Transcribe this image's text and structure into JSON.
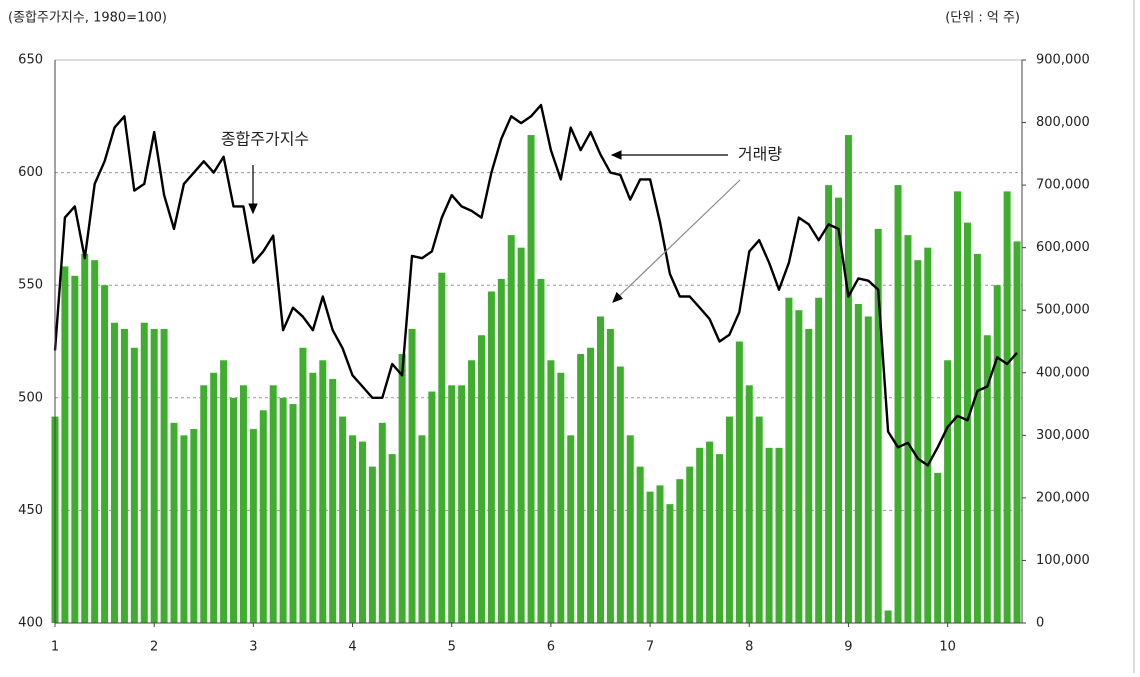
{
  "chart_data": {
    "type": "combo",
    "subtitle_left": "(종합주가지수, 1980=100)",
    "subtitle_right": "(단위 : 억 주)",
    "x": [
      1.0,
      1.1,
      1.2,
      1.3,
      1.4,
      1.5,
      1.6,
      1.7,
      1.8,
      1.9,
      2.0,
      2.1,
      2.2,
      2.3,
      2.4,
      2.5,
      2.6,
      2.7,
      2.8,
      2.9,
      3.0,
      3.1,
      3.2,
      3.3,
      3.4,
      3.5,
      3.6,
      3.7,
      3.8,
      3.9,
      4.0,
      4.1,
      4.2,
      4.3,
      4.4,
      4.5,
      4.6,
      4.7,
      4.8,
      4.9,
      5.0,
      5.1,
      5.2,
      5.3,
      5.4,
      5.5,
      5.6,
      5.7,
      5.8,
      5.9,
      6.0,
      6.1,
      6.2,
      6.3,
      6.4,
      6.5,
      6.6,
      6.7,
      6.8,
      6.9,
      7.0,
      7.1,
      7.2,
      7.3,
      7.4,
      7.5,
      7.6,
      7.7,
      7.8,
      7.9,
      8.0,
      8.1,
      8.2,
      8.3,
      8.4,
      8.5,
      8.6,
      8.7,
      8.8,
      8.9,
      9.0,
      9.1,
      9.2,
      9.3,
      9.4,
      9.5,
      9.6,
      9.7,
      9.8,
      9.9,
      10.0,
      10.1,
      10.2,
      10.3,
      10.4,
      10.5,
      10.6,
      10.7
    ],
    "xlim": [
      1,
      10.75
    ],
    "xticks": [
      1,
      2,
      3,
      4,
      5,
      6,
      7,
      8,
      9,
      10
    ],
    "ylim": [
      400,
      650
    ],
    "yticks": [
      400,
      450,
      500,
      550,
      600,
      650
    ],
    "y2lim": [
      0,
      900000
    ],
    "y2ticks": [
      0,
      {
        "value": 100000,
        "label": "100,000"
      },
      {
        "value": 200000,
        "label": "200,000"
      },
      {
        "value": 300000,
        "label": "300,000"
      },
      {
        "value": 400000,
        "label": "400,000"
      },
      {
        "value": 500000,
        "label": "500,000"
      },
      {
        "value": 600000,
        "label": "600,000"
      },
      {
        "value": 700000,
        "label": "700,000"
      },
      {
        "value": 800000,
        "label": "800,000"
      },
      {
        "value": 900000,
        "label": "900,000"
      }
    ],
    "grid": true,
    "series": [
      {
        "name": "거래량",
        "type": "bar",
        "axis": "y2",
        "color": "#3fae2f",
        "values": [
          330000,
          570000,
          555000,
          590000,
          580000,
          540000,
          480000,
          470000,
          440000,
          480000,
          470000,
          470000,
          320000,
          300000,
          310000,
          380000,
          400000,
          420000,
          360000,
          380000,
          310000,
          340000,
          380000,
          360000,
          350000,
          440000,
          400000,
          420000,
          390000,
          330000,
          300000,
          290000,
          250000,
          320000,
          270000,
          430000,
          470000,
          300000,
          370000,
          560000,
          380000,
          380000,
          420000,
          460000,
          530000,
          550000,
          620000,
          600000,
          780000,
          550000,
          420000,
          400000,
          300000,
          430000,
          440000,
          490000,
          470000,
          410000,
          300000,
          250000,
          210000,
          220000,
          190000,
          230000,
          250000,
          280000,
          290000,
          270000,
          330000,
          450000,
          380000,
          330000,
          280000,
          280000,
          520000,
          500000,
          470000,
          520000,
          700000,
          680000,
          780000,
          510000,
          490000,
          630000,
          20000,
          700000,
          620000,
          580000,
          600000,
          240000,
          420000,
          690000,
          640000,
          590000,
          460000,
          540000,
          690000,
          610000
        ]
      },
      {
        "name": "종합주가지수",
        "type": "line",
        "color": "#000000",
        "values": [
          521,
          580,
          585,
          562,
          595,
          605,
          620,
          625,
          592,
          595,
          618,
          590,
          575,
          595,
          600,
          605,
          600,
          607,
          585,
          585,
          560,
          565,
          572,
          530,
          540,
          536,
          530,
          545,
          530,
          522,
          510,
          505,
          500,
          500,
          515,
          510,
          563,
          562,
          565,
          580,
          590,
          585,
          583,
          580,
          600,
          615,
          625,
          622,
          625,
          630,
          610,
          597,
          620,
          610,
          618,
          608,
          600,
          599,
          588,
          597,
          597,
          578,
          555,
          545,
          545,
          540,
          535,
          525,
          528,
          538,
          565,
          570,
          560,
          548,
          560,
          580,
          577,
          570,
          577,
          575,
          545,
          553,
          552,
          548,
          485,
          478,
          480,
          473,
          470,
          478,
          487,
          492,
          490,
          503,
          505,
          518,
          515,
          520
        ]
      }
    ]
  }
}
